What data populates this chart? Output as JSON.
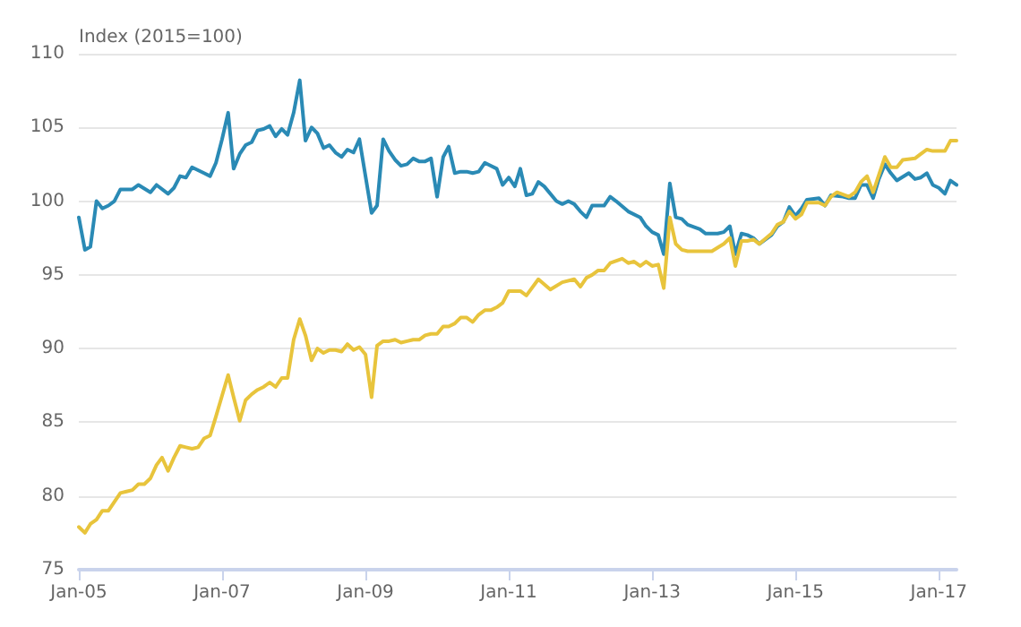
{
  "chart_data": {
    "type": "line",
    "ylabel": "Index (2015=100)",
    "ylim": [
      75,
      110
    ],
    "yticks": [
      75,
      80,
      85,
      90,
      95,
      100,
      105,
      110
    ],
    "xlim": [
      "2005-01",
      "2017-04"
    ],
    "xticks": [
      {
        "value": "2005-01",
        "label": "Jan-05"
      },
      {
        "value": "2007-01",
        "label": "Jan-07"
      },
      {
        "value": "2009-01",
        "label": "Jan-09"
      },
      {
        "value": "2011-01",
        "label": "Jan-11"
      },
      {
        "value": "2013-01",
        "label": "Jan-13"
      },
      {
        "value": "2015-01",
        "label": "Jan-15"
      },
      {
        "value": "2017-01",
        "label": "Jan-17"
      }
    ],
    "grid": "y",
    "marker": "none",
    "line_style": "solid",
    "series": [
      {
        "color": "#2a8ab5",
        "x": [
          "2005-01",
          "2005-02",
          "2005-03",
          "2005-04",
          "2005-05",
          "2005-06",
          "2005-07",
          "2005-08",
          "2005-10",
          "2005-11",
          "2006-01",
          "2006-02",
          "2006-04",
          "2006-05",
          "2006-06",
          "2006-07",
          "2006-08",
          "2006-10",
          "2006-11",
          "2006-12",
          "2007-01",
          "2007-02",
          "2007-03",
          "2007-04",
          "2007-05",
          "2007-06",
          "2007-07",
          "2007-08",
          "2007-09",
          "2007-10",
          "2007-11",
          "2007-12",
          "2008-01",
          "2008-02",
          "2008-03",
          "2008-04",
          "2008-05",
          "2008-06",
          "2008-07",
          "2008-08",
          "2008-09",
          "2008-10",
          "2008-11",
          "2008-12",
          "2009-01",
          "2009-02",
          "2009-03",
          "2009-04",
          "2009-05",
          "2009-06",
          "2009-07",
          "2009-08",
          "2009-09",
          "2009-10",
          "2009-11",
          "2009-12",
          "2010-01",
          "2010-02",
          "2010-03",
          "2010-04",
          "2010-05",
          "2010-06",
          "2010-07",
          "2010-08",
          "2010-09",
          "2010-10",
          "2010-11",
          "2010-12",
          "2011-01",
          "2011-02",
          "2011-03",
          "2011-04",
          "2011-05",
          "2011-06",
          "2011-07",
          "2011-09",
          "2011-10",
          "2011-11",
          "2011-12",
          "2012-01",
          "2012-02",
          "2012-03",
          "2012-05",
          "2012-06",
          "2012-07",
          "2012-09",
          "2012-11",
          "2012-12",
          "2013-01",
          "2013-02",
          "2013-03",
          "2013-04",
          "2013-05",
          "2013-06",
          "2013-07",
          "2013-09",
          "2013-10",
          "2013-12",
          "2014-01",
          "2014-02",
          "2014-03",
          "2014-04",
          "2014-05",
          "2014-06",
          "2014-07",
          "2014-09",
          "2014-10",
          "2014-11",
          "2014-12",
          "2015-01",
          "2015-02",
          "2015-03",
          "2015-05",
          "2015-06",
          "2015-07",
          "2015-09",
          "2015-10",
          "2015-11",
          "2015-12",
          "2016-01",
          "2016-02",
          "2016-03",
          "2016-04",
          "2016-05",
          "2016-06",
          "2016-08",
          "2016-09",
          "2016-10",
          "2016-11",
          "2016-12",
          "2017-01",
          "2017-02",
          "2017-03",
          "2017-04"
        ],
        "values": [
          98.9,
          96.7,
          96.9,
          100.0,
          99.5,
          99.7,
          100.0,
          100.8,
          100.8,
          101.1,
          100.6,
          101.1,
          100.5,
          100.9,
          101.7,
          101.6,
          102.3,
          101.9,
          101.7,
          102.6,
          104.2,
          106.0,
          102.2,
          103.2,
          103.8,
          104.0,
          104.8,
          104.9,
          105.1,
          104.4,
          104.9,
          104.5,
          106.0,
          108.2,
          104.1,
          105.0,
          104.6,
          103.6,
          103.8,
          103.3,
          103.0,
          103.5,
          103.3,
          104.2,
          101.7,
          99.2,
          99.7,
          104.2,
          103.4,
          102.8,
          102.4,
          102.5,
          102.9,
          102.7,
          102.7,
          102.9,
          100.3,
          103.0,
          103.7,
          101.9,
          102.0,
          102.0,
          101.9,
          102.0,
          102.6,
          102.4,
          102.2,
          101.1,
          101.6,
          101.0,
          102.2,
          100.4,
          100.5,
          101.3,
          101.0,
          100.0,
          99.8,
          100.0,
          99.8,
          99.3,
          98.9,
          99.7,
          99.7,
          100.3,
          100.0,
          99.3,
          98.9,
          98.3,
          97.9,
          97.7,
          96.4,
          101.2,
          98.9,
          98.8,
          98.4,
          98.1,
          97.8,
          97.8,
          97.9,
          98.3,
          96.4,
          97.8,
          97.7,
          97.5,
          97.1,
          97.7,
          98.3,
          98.6,
          99.6,
          99.0,
          99.5,
          100.1,
          100.2,
          99.7,
          100.4,
          100.3,
          100.2,
          100.2,
          101.1,
          101.1,
          100.2,
          101.5,
          102.5,
          101.9,
          101.4,
          101.9,
          101.5,
          101.6,
          101.9,
          101.1,
          100.9,
          100.5,
          101.4,
          101.1
        ]
      },
      {
        "color": "#e8c43c",
        "x": [
          "2005-01",
          "2005-02",
          "2005-03",
          "2005-04",
          "2005-05",
          "2005-06",
          "2005-07",
          "2005-08",
          "2005-09",
          "2005-10",
          "2005-11",
          "2005-12",
          "2006-01",
          "2006-02",
          "2006-03",
          "2006-04",
          "2006-05",
          "2006-06",
          "2006-07",
          "2006-08",
          "2006-09",
          "2006-10",
          "2006-11",
          "2006-12",
          "2007-01",
          "2007-02",
          "2007-03",
          "2007-04",
          "2007-05",
          "2007-06",
          "2007-07",
          "2007-08",
          "2007-09",
          "2007-10",
          "2007-11",
          "2007-12",
          "2008-01",
          "2008-02",
          "2008-03",
          "2008-04",
          "2008-05",
          "2008-06",
          "2008-07",
          "2008-08",
          "2008-09",
          "2008-10",
          "2008-11",
          "2008-12",
          "2009-01",
          "2009-02",
          "2009-03",
          "2009-04",
          "2009-05",
          "2009-06",
          "2009-07",
          "2009-08",
          "2009-09",
          "2009-10",
          "2009-11",
          "2009-12",
          "2010-01",
          "2010-02",
          "2010-03",
          "2010-04",
          "2010-05",
          "2010-06",
          "2010-07",
          "2010-08",
          "2010-09",
          "2010-10",
          "2010-11",
          "2010-12",
          "2011-01",
          "2011-03",
          "2011-04",
          "2011-06",
          "2011-08",
          "2011-10",
          "2011-12",
          "2012-01",
          "2012-02",
          "2012-03",
          "2012-04",
          "2012-05",
          "2012-06",
          "2012-08",
          "2012-09",
          "2012-10",
          "2012-11",
          "2012-12",
          "2013-01",
          "2013-02",
          "2013-03",
          "2013-04",
          "2013-05",
          "2013-06",
          "2013-07",
          "2013-09",
          "2013-10",
          "2013-11",
          "2014-01",
          "2014-02",
          "2014-03",
          "2014-04",
          "2014-05",
          "2014-06",
          "2014-07",
          "2014-09",
          "2014-10",
          "2014-11",
          "2014-12",
          "2015-01",
          "2015-02",
          "2015-03",
          "2015-05",
          "2015-06",
          "2015-07",
          "2015-08",
          "2015-10",
          "2015-11",
          "2015-12",
          "2016-01",
          "2016-02",
          "2016-04",
          "2016-05",
          "2016-06",
          "2016-07",
          "2016-09",
          "2016-10",
          "2016-11",
          "2016-12",
          "2017-02",
          "2017-03",
          "2017-04"
        ],
        "values": [
          77.9,
          77.5,
          78.1,
          78.4,
          79.0,
          79.0,
          79.6,
          80.2,
          80.3,
          80.4,
          80.8,
          80.8,
          81.2,
          82.1,
          82.6,
          81.7,
          82.6,
          83.4,
          83.3,
          83.2,
          83.3,
          83.9,
          84.1,
          85.4,
          86.8,
          88.2,
          86.7,
          85.1,
          86.5,
          86.9,
          87.2,
          87.4,
          87.7,
          87.4,
          88.0,
          88.0,
          90.6,
          92.0,
          90.9,
          89.2,
          90.0,
          89.7,
          89.9,
          89.9,
          89.8,
          90.3,
          89.9,
          90.1,
          89.6,
          86.7,
          90.2,
          90.5,
          90.5,
          90.6,
          90.4,
          90.5,
          90.6,
          90.6,
          90.9,
          91.0,
          91.0,
          91.5,
          91.5,
          91.7,
          92.1,
          92.1,
          91.8,
          92.3,
          92.6,
          92.6,
          92.8,
          93.1,
          93.9,
          93.9,
          93.6,
          94.7,
          94.0,
          94.5,
          94.7,
          94.2,
          94.8,
          95.0,
          95.3,
          95.3,
          95.8,
          96.1,
          95.8,
          95.9,
          95.6,
          95.9,
          95.6,
          95.7,
          94.1,
          98.9,
          97.1,
          96.7,
          96.6,
          96.6,
          96.6,
          96.6,
          97.1,
          97.5,
          95.6,
          97.3,
          97.3,
          97.4,
          97.1,
          97.8,
          98.4,
          98.6,
          99.3,
          98.8,
          99.1,
          99.9,
          99.9,
          99.7,
          100.3,
          100.6,
          100.3,
          100.6,
          101.3,
          101.7,
          100.6,
          103.0,
          102.3,
          102.3,
          102.8,
          102.9,
          103.2,
          103.5,
          103.4,
          103.4,
          104.1,
          104.1
        ]
      }
    ]
  }
}
